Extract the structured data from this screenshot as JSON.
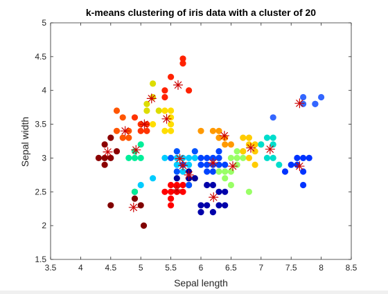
{
  "chart_data": {
    "type": "scatter",
    "title": "k-means clustering of iris data with a cluster of 20",
    "xlabel": "Sepal length",
    "ylabel": "Sepal width",
    "xlim": [
      3.5,
      8.5
    ],
    "ylim": [
      1.5,
      5
    ],
    "xticks": [
      "3.5",
      "4",
      "4.5",
      "5",
      "5.5",
      "6",
      "6.5",
      "7",
      "7.5",
      "8",
      "8.5"
    ],
    "yticks": [
      "1.5",
      "2",
      "2.5",
      "3",
      "3.5",
      "4",
      "4.5",
      "5"
    ],
    "grid": false,
    "legend": "none",
    "marker_style": {
      "points": "filled circle",
      "centroids": "red asterisk"
    },
    "colors": {
      "axis": "#262626",
      "centroid": "#cc0000",
      "background": "#ffffff"
    },
    "clusters": [
      {
        "color": "#8b0000",
        "points": [
          [
            4.3,
            3.0
          ],
          [
            4.4,
            2.9
          ],
          [
            4.4,
            3.0
          ],
          [
            4.5,
            3.0
          ],
          [
            4.6,
            3.1
          ],
          [
            4.4,
            3.2
          ],
          [
            4.5,
            3.3
          ]
        ],
        "centroid": [
          4.45,
          3.09
        ]
      },
      {
        "color": "#800000",
        "points": [
          [
            4.5,
            2.3
          ],
          [
            4.9,
            2.4
          ],
          [
            5.0,
            2.3
          ],
          [
            5.05,
            2.0
          ],
          [
            4.9,
            2.5
          ]
        ],
        "centroid": [
          4.88,
          2.27
        ]
      },
      {
        "color": "#ff3300",
        "points": [
          [
            5.0,
            3.5
          ],
          [
            5.1,
            3.5
          ],
          [
            4.9,
            3.6
          ],
          [
            5.0,
            3.4
          ],
          [
            5.1,
            3.4
          ]
        ],
        "centroid": [
          5.06,
          3.5
        ]
      },
      {
        "color": "#ff5500",
        "points": [
          [
            4.6,
            3.7
          ],
          [
            4.7,
            3.6
          ],
          [
            4.7,
            3.3
          ],
          [
            4.8,
            3.4
          ],
          [
            4.8,
            3.3
          ],
          [
            4.6,
            3.4
          ]
        ],
        "centroid": [
          4.74,
          3.4
        ]
      },
      {
        "color": "#ff2200",
        "points": [
          [
            5.4,
            3.9
          ],
          [
            5.5,
            4.2
          ],
          [
            5.7,
            4.4
          ],
          [
            5.8,
            4.0
          ],
          [
            5.7,
            4.47
          ],
          [
            5.4,
            4.0
          ]
        ],
        "centroid": [
          5.62,
          4.08
        ]
      },
      {
        "color": "#dddd00",
        "points": [
          [
            5.1,
            3.8
          ],
          [
            5.2,
            4.1
          ],
          [
            5.3,
            3.7
          ],
          [
            5.1,
            3.7
          ],
          [
            5.2,
            3.9
          ]
        ],
        "centroid": [
          5.18,
          3.88
        ]
      },
      {
        "color": "#ffdd00",
        "points": [
          [
            5.4,
            3.7
          ],
          [
            5.5,
            3.5
          ],
          [
            5.4,
            3.4
          ],
          [
            5.5,
            3.7
          ],
          [
            5.5,
            3.4
          ],
          [
            5.2,
            3.5
          ],
          [
            5.5,
            3.6
          ]
        ],
        "centroid": [
          5.43,
          3.58
        ]
      },
      {
        "color": "#00ccff",
        "points": [
          [
            5.6,
            3.0
          ],
          [
            5.7,
            2.9
          ],
          [
            5.8,
            2.9
          ],
          [
            5.7,
            2.8
          ],
          [
            5.9,
            3.0
          ],
          [
            5.6,
            2.9
          ],
          [
            5.8,
            3.0
          ],
          [
            5.7,
            3.0
          ],
          [
            5.4,
            3.0
          ],
          [
            5.2,
            2.7
          ],
          [
            5.0,
            2.6
          ]
        ],
        "centroid": [
          5.65,
          2.99
        ]
      },
      {
        "color": "#ff0000",
        "points": [
          [
            5.5,
            2.6
          ],
          [
            5.6,
            2.5
          ],
          [
            5.7,
            2.5
          ],
          [
            5.5,
            2.4
          ],
          [
            5.6,
            2.6
          ],
          [
            5.5,
            2.3
          ],
          [
            5.8,
            2.7
          ],
          [
            5.7,
            2.6
          ],
          [
            5.5,
            2.5
          ],
          [
            5.4,
            2.5
          ]
        ],
        "centroid": [
          5.6,
          2.53
        ]
      },
      {
        "color": "#00ee99",
        "points": [
          [
            4.9,
            3.1
          ],
          [
            5.0,
            3.0
          ],
          [
            4.8,
            3.0
          ],
          [
            5.0,
            3.2
          ],
          [
            4.9,
            3.0
          ],
          [
            4.9,
            2.5
          ]
        ],
        "centroid": [
          4.92,
          3.12
        ]
      },
      {
        "color": "#000099",
        "points": [
          [
            5.8,
            2.6
          ],
          [
            5.9,
            2.7
          ],
          [
            5.8,
            2.7
          ],
          [
            5.8,
            2.8
          ],
          [
            5.6,
            2.7
          ]
        ],
        "centroid": [
          5.8,
          2.75
        ]
      },
      {
        "color": "#0000aa",
        "points": [
          [
            6.1,
            2.3
          ],
          [
            6.0,
            2.2
          ],
          [
            6.3,
            2.3
          ],
          [
            6.2,
            2.2
          ],
          [
            6.4,
            2.3
          ],
          [
            6.4,
            2.5
          ],
          [
            6.3,
            2.5
          ],
          [
            6.2,
            2.6
          ],
          [
            6.0,
            2.3
          ],
          [
            6.1,
            2.6
          ]
        ],
        "centroid": [
          6.21,
          2.42
        ]
      },
      {
        "color": "#0044ff",
        "points": [
          [
            6.1,
            2.9
          ],
          [
            6.0,
            3.0
          ],
          [
            6.2,
            2.9
          ],
          [
            6.1,
            3.0
          ],
          [
            6.3,
            2.9
          ],
          [
            6.0,
            2.9
          ],
          [
            6.3,
            3.0
          ],
          [
            6.2,
            3.0
          ],
          [
            6.4,
            2.9
          ],
          [
            6.3,
            3.1
          ],
          [
            6.1,
            2.8
          ],
          [
            6.2,
            2.8
          ]
        ],
        "centroid": [
          6.2,
          2.93
        ]
      },
      {
        "color": "#0055ff",
        "points": [
          [
            5.6,
            3.1
          ],
          [
            5.7,
            2.9
          ],
          [
            5.8,
            2.6
          ],
          [
            5.9,
            3.1
          ],
          [
            5.6,
            2.8
          ],
          [
            5.5,
            3.0
          ]
        ],
        "centroid": [
          5.7,
          2.89
        ]
      },
      {
        "color": "#ff9900",
        "points": [
          [
            6.0,
            3.4
          ],
          [
            6.2,
            3.4
          ],
          [
            6.3,
            3.3
          ],
          [
            6.4,
            3.3
          ],
          [
            6.4,
            3.2
          ],
          [
            6.3,
            3.4
          ],
          [
            6.5,
            3.2
          ]
        ],
        "centroid": [
          6.39,
          3.33
        ]
      },
      {
        "color": "#99ff66",
        "points": [
          [
            6.3,
            2.8
          ],
          [
            6.4,
            2.8
          ],
          [
            6.5,
            3.0
          ],
          [
            6.7,
            3.0
          ],
          [
            6.6,
            3.0
          ],
          [
            6.6,
            2.9
          ],
          [
            6.7,
            3.1
          ],
          [
            6.5,
            2.8
          ],
          [
            6.8,
            2.5
          ],
          [
            6.4,
            2.7
          ],
          [
            6.6,
            3.1
          ],
          [
            6.5,
            2.6
          ]
        ],
        "centroid": [
          6.53,
          2.88
        ]
      },
      {
        "color": "#ffcc00",
        "points": [
          [
            6.7,
            3.3
          ],
          [
            6.8,
            3.2
          ],
          [
            6.9,
            3.1
          ],
          [
            6.7,
            3.1
          ],
          [
            6.8,
            3.0
          ],
          [
            6.9,
            3.2
          ],
          [
            6.8,
            3.3
          ],
          [
            7.0,
            3.2
          ],
          [
            6.9,
            2.9
          ]
        ],
        "centroid": [
          6.83,
          3.15
        ]
      },
      {
        "color": "#00ddcc",
        "points": [
          [
            7.0,
            3.2
          ],
          [
            7.1,
            3.0
          ],
          [
            7.2,
            3.2
          ],
          [
            7.2,
            3.0
          ],
          [
            7.3,
            2.9
          ],
          [
            7.2,
            3.3
          ],
          [
            7.1,
            3.3
          ]
        ],
        "centroid": [
          7.15,
          3.13
        ]
      },
      {
        "color": "#0033ff",
        "points": [
          [
            7.6,
            3.0
          ],
          [
            7.7,
            2.8
          ],
          [
            7.7,
            3.0
          ],
          [
            7.9,
            3.8
          ],
          [
            7.7,
            2.6
          ],
          [
            7.4,
            2.8
          ],
          [
            7.6,
            2.9
          ],
          [
            7.5,
            2.9
          ],
          [
            7.8,
            3.0
          ]
        ],
        "centroid": [
          7.64,
          2.88
        ]
      },
      {
        "color": "#3366ff",
        "points": [
          [
            7.2,
            3.6
          ],
          [
            7.7,
            3.8
          ],
          [
            7.9,
            3.8
          ],
          [
            8.0,
            3.9
          ],
          [
            7.7,
            3.9
          ]
        ],
        "centroid": [
          7.64,
          3.81
        ]
      }
    ]
  }
}
